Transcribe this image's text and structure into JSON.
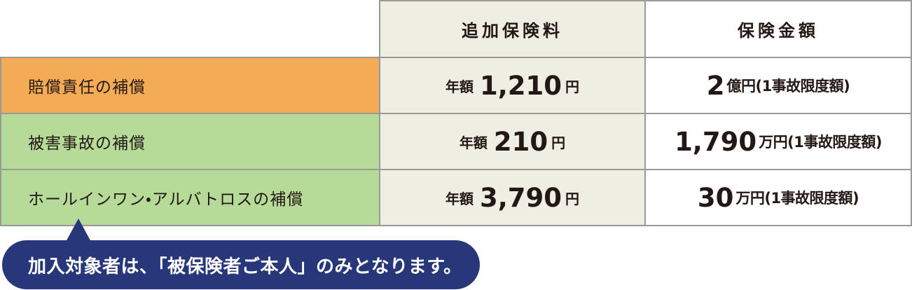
{
  "table": {
    "header": {
      "corner": "",
      "premium": "追加保険料",
      "amount": "保険金額"
    },
    "rows": [
      {
        "label": "賠償責任の補償",
        "highlight": "orange",
        "premium_prefix": "年額",
        "premium_value": "1,210",
        "premium_suffix": "円",
        "amount_value": "2",
        "amount_note": "億円(1事故限度額)"
      },
      {
        "label": "被害事故の補償",
        "highlight": "green",
        "premium_prefix": "年額",
        "premium_value": "210",
        "premium_suffix": "円",
        "amount_value": "1,790",
        "amount_note": "万円(1事故限度額)"
      },
      {
        "label": "ホールインワン・アルバトロスの補償",
        "highlight": "green",
        "premium_prefix": "年額",
        "premium_value": "3,790",
        "premium_suffix": "円",
        "amount_value": "30",
        "amount_note": "万円(1事故限度額)"
      }
    ]
  },
  "callout": {
    "text": "加入対象者は、「被保険者ご本人」のみとなります。"
  },
  "colors": {
    "row_orange": "#f4ab55",
    "row_green": "#b6db99",
    "cell_beige": "#efeee3",
    "border_gray": "#999999",
    "callout_navy": "#28377a",
    "text": "#231815"
  }
}
